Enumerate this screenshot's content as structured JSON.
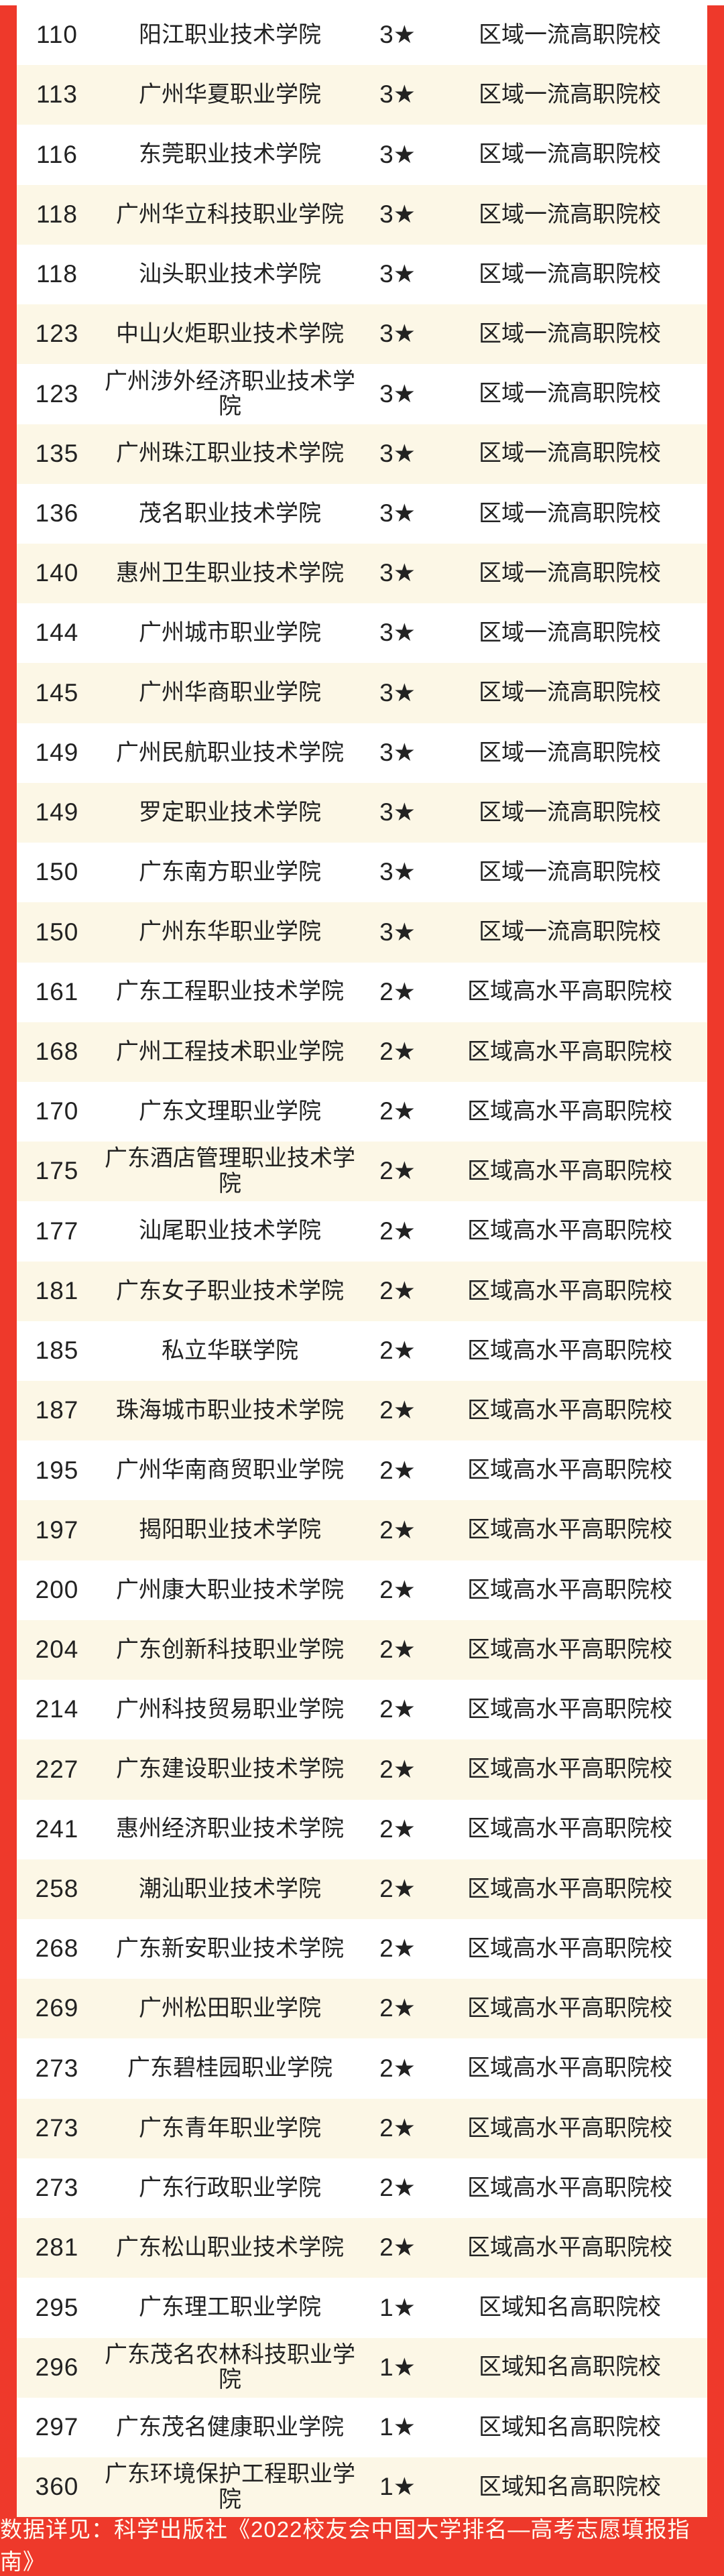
{
  "colors": {
    "accent_red": "#ee392b",
    "row_alt_cream": "#fcf7e6",
    "text_ink": "#222222",
    "footer_text_color": "#fffdf2"
  },
  "table": {
    "rows": [
      {
        "rank": "110",
        "name": "阳江职业技术学院",
        "star": "3★",
        "tier": "区域一流高职院校"
      },
      {
        "rank": "113",
        "name": "广州华夏职业学院",
        "star": "3★",
        "tier": "区域一流高职院校"
      },
      {
        "rank": "116",
        "name": "东莞职业技术学院",
        "star": "3★",
        "tier": "区域一流高职院校"
      },
      {
        "rank": "118",
        "name": "广州华立科技职业学院",
        "star": "3★",
        "tier": "区域一流高职院校"
      },
      {
        "rank": "118",
        "name": "汕头职业技术学院",
        "star": "3★",
        "tier": "区域一流高职院校"
      },
      {
        "rank": "123",
        "name": "中山火炬职业技术学院",
        "star": "3★",
        "tier": "区域一流高职院校"
      },
      {
        "rank": "123",
        "name": "广州涉外经济职业技术学院",
        "star": "3★",
        "tier": "区域一流高职院校"
      },
      {
        "rank": "135",
        "name": "广州珠江职业技术学院",
        "star": "3★",
        "tier": "区域一流高职院校"
      },
      {
        "rank": "136",
        "name": "茂名职业技术学院",
        "star": "3★",
        "tier": "区域一流高职院校"
      },
      {
        "rank": "140",
        "name": "惠州卫生职业技术学院",
        "star": "3★",
        "tier": "区域一流高职院校"
      },
      {
        "rank": "144",
        "name": "广州城市职业学院",
        "star": "3★",
        "tier": "区域一流高职院校"
      },
      {
        "rank": "145",
        "name": "广州华商职业学院",
        "star": "3★",
        "tier": "区域一流高职院校"
      },
      {
        "rank": "149",
        "name": "广州民航职业技术学院",
        "star": "3★",
        "tier": "区域一流高职院校"
      },
      {
        "rank": "149",
        "name": "罗定职业技术学院",
        "star": "3★",
        "tier": "区域一流高职院校"
      },
      {
        "rank": "150",
        "name": "广东南方职业学院",
        "star": "3★",
        "tier": "区域一流高职院校"
      },
      {
        "rank": "150",
        "name": "广州东华职业学院",
        "star": "3★",
        "tier": "区域一流高职院校"
      },
      {
        "rank": "161",
        "name": "广东工程职业技术学院",
        "star": "2★",
        "tier": "区域高水平高职院校"
      },
      {
        "rank": "168",
        "name": "广州工程技术职业学院",
        "star": "2★",
        "tier": "区域高水平高职院校"
      },
      {
        "rank": "170",
        "name": "广东文理职业学院",
        "star": "2★",
        "tier": "区域高水平高职院校"
      },
      {
        "rank": "175",
        "name": "广东酒店管理职业技术学院",
        "star": "2★",
        "tier": "区域高水平高职院校"
      },
      {
        "rank": "177",
        "name": "汕尾职业技术学院",
        "star": "2★",
        "tier": "区域高水平高职院校"
      },
      {
        "rank": "181",
        "name": "广东女子职业技术学院",
        "star": "2★",
        "tier": "区域高水平高职院校"
      },
      {
        "rank": "185",
        "name": "私立华联学院",
        "star": "2★",
        "tier": "区域高水平高职院校"
      },
      {
        "rank": "187",
        "name": "珠海城市职业技术学院",
        "star": "2★",
        "tier": "区域高水平高职院校"
      },
      {
        "rank": "195",
        "name": "广州华南商贸职业学院",
        "star": "2★",
        "tier": "区域高水平高职院校"
      },
      {
        "rank": "197",
        "name": "揭阳职业技术学院",
        "star": "2★",
        "tier": "区域高水平高职院校"
      },
      {
        "rank": "200",
        "name": "广州康大职业技术学院",
        "star": "2★",
        "tier": "区域高水平高职院校"
      },
      {
        "rank": "204",
        "name": "广东创新科技职业学院",
        "star": "2★",
        "tier": "区域高水平高职院校"
      },
      {
        "rank": "214",
        "name": "广州科技贸易职业学院",
        "star": "2★",
        "tier": "区域高水平高职院校"
      },
      {
        "rank": "227",
        "name": "广东建设职业技术学院",
        "star": "2★",
        "tier": "区域高水平高职院校"
      },
      {
        "rank": "241",
        "name": "惠州经济职业技术学院",
        "star": "2★",
        "tier": "区域高水平高职院校"
      },
      {
        "rank": "258",
        "name": "潮汕职业技术学院",
        "star": "2★",
        "tier": "区域高水平高职院校"
      },
      {
        "rank": "268",
        "name": "广东新安职业技术学院",
        "star": "2★",
        "tier": "区域高水平高职院校"
      },
      {
        "rank": "269",
        "name": "广州松田职业学院",
        "star": "2★",
        "tier": "区域高水平高职院校"
      },
      {
        "rank": "273",
        "name": "广东碧桂园职业学院",
        "star": "2★",
        "tier": "区域高水平高职院校"
      },
      {
        "rank": "273",
        "name": "广东青年职业学院",
        "star": "2★",
        "tier": "区域高水平高职院校"
      },
      {
        "rank": "273",
        "name": "广东行政职业学院",
        "star": "2★",
        "tier": "区域高水平高职院校"
      },
      {
        "rank": "281",
        "name": "广东松山职业技术学院",
        "star": "2★",
        "tier": "区域高水平高职院校"
      },
      {
        "rank": "295",
        "name": "广东理工职业学院",
        "star": "1★",
        "tier": "区域知名高职院校"
      },
      {
        "rank": "296",
        "name": "广东茂名农林科技职业学院",
        "star": "1★",
        "tier": "区域知名高职院校"
      },
      {
        "rank": "297",
        "name": "广东茂名健康职业学院",
        "star": "1★",
        "tier": "区域知名高职院校"
      },
      {
        "rank": "360",
        "name": "广东环境保护工程职业学院",
        "star": "1★",
        "tier": "区域知名高职院校"
      }
    ]
  },
  "footer": {
    "text": "数据详见：科学出版社《2022校友会中国大学排名—高考志愿填报指南》"
  }
}
